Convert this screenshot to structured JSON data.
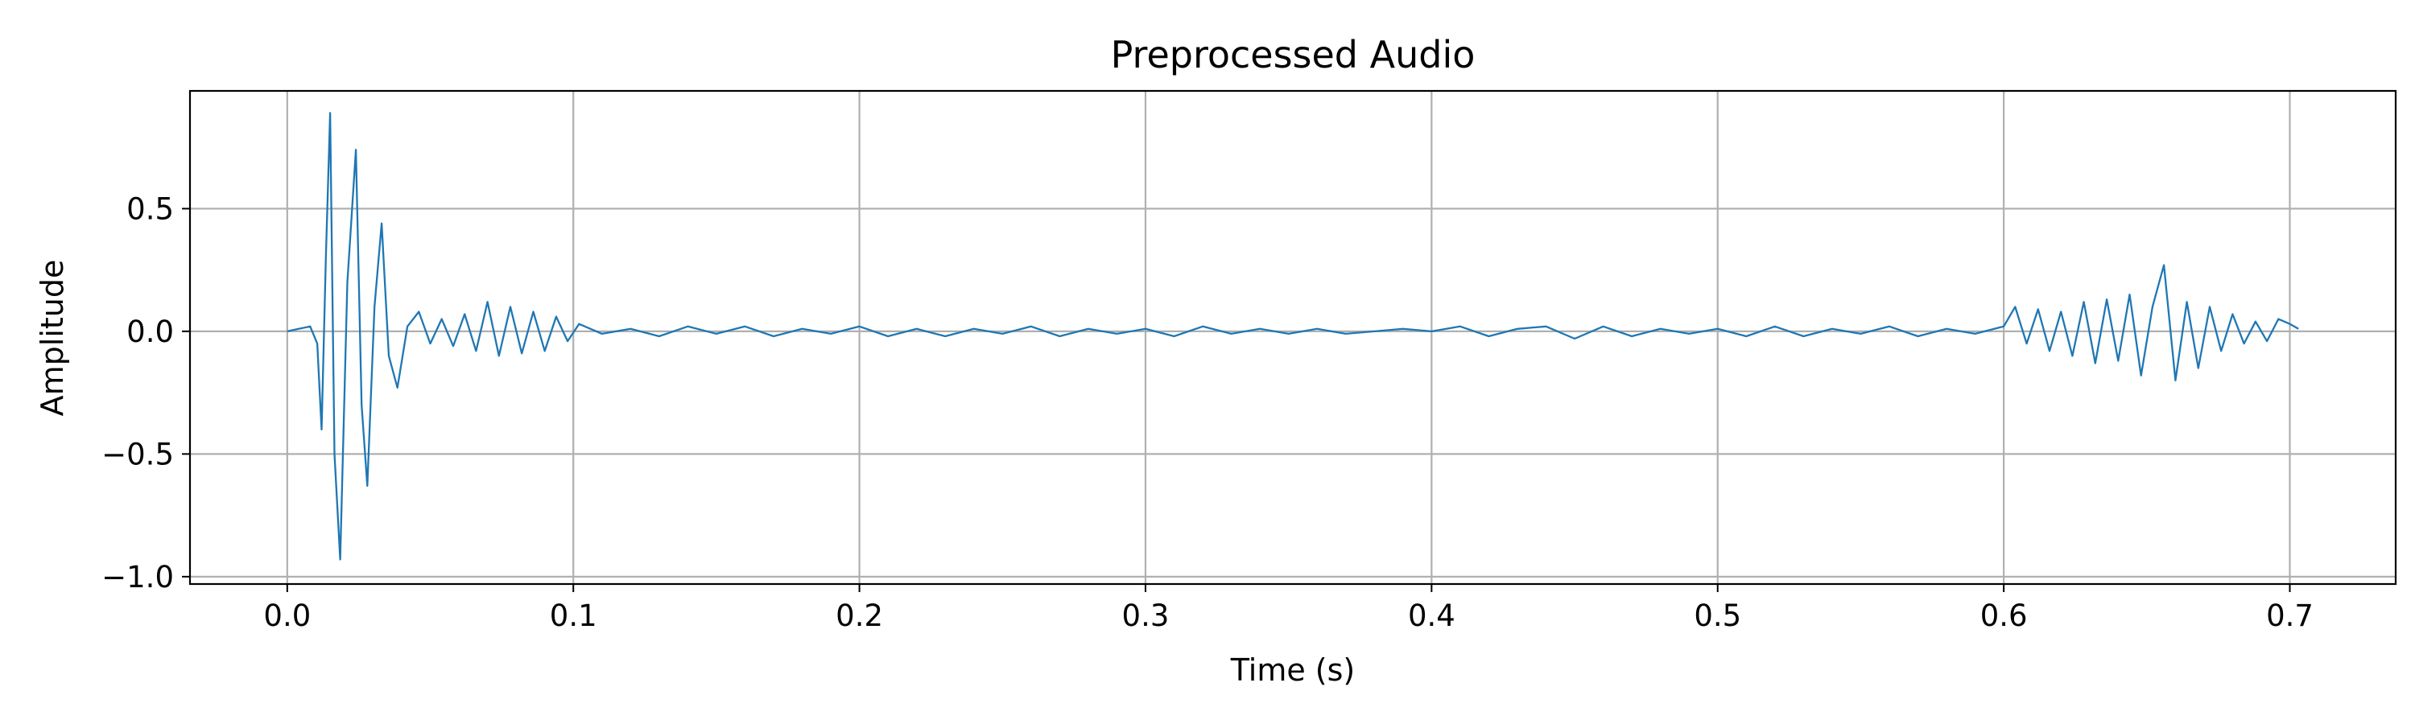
{
  "chart_data": {
    "type": "line",
    "title": "Preprocessed Audio",
    "xlabel": "Time (s)",
    "ylabel": "Amplitude",
    "xlim": [
      -0.034,
      0.737
    ],
    "ylim": [
      -1.03,
      0.98
    ],
    "xticks": [
      0.0,
      0.1,
      0.2,
      0.3,
      0.4,
      0.5,
      0.6,
      0.7
    ],
    "xtick_labels": [
      "0.0",
      "0.1",
      "0.2",
      "0.3",
      "0.4",
      "0.5",
      "0.6",
      "0.7"
    ],
    "yticks": [
      -1.0,
      -0.5,
      0.0,
      0.5
    ],
    "ytick_labels": [
      "−1.0",
      "−0.5",
      "0.0",
      "0.5"
    ],
    "grid": true,
    "colors": {
      "line": "#1f77b4",
      "grid": "#b0b0b0"
    },
    "series": [
      {
        "x": [
          0.0,
          0.004,
          0.008,
          0.0105,
          0.012,
          0.0135,
          0.015,
          0.0165,
          0.0185,
          0.021,
          0.024,
          0.026,
          0.028,
          0.0305,
          0.033,
          0.0355,
          0.0385,
          0.042,
          0.046,
          0.05,
          0.054,
          0.058,
          0.062,
          0.066,
          0.07,
          0.074,
          0.078,
          0.082,
          0.086,
          0.09,
          0.094,
          0.098,
          0.102,
          0.11,
          0.12,
          0.13,
          0.14,
          0.15,
          0.16,
          0.17,
          0.18,
          0.19,
          0.2,
          0.21,
          0.22,
          0.23,
          0.24,
          0.25,
          0.26,
          0.27,
          0.28,
          0.29,
          0.3,
          0.31,
          0.32,
          0.33,
          0.34,
          0.35,
          0.36,
          0.37,
          0.38,
          0.39,
          0.4,
          0.41,
          0.42,
          0.43,
          0.44,
          0.45,
          0.46,
          0.47,
          0.48,
          0.49,
          0.5,
          0.51,
          0.52,
          0.53,
          0.54,
          0.55,
          0.56,
          0.57,
          0.58,
          0.59,
          0.6,
          0.604,
          0.608,
          0.612,
          0.616,
          0.62,
          0.624,
          0.628,
          0.632,
          0.636,
          0.64,
          0.644,
          0.648,
          0.652,
          0.656,
          0.66,
          0.664,
          0.668,
          0.672,
          0.676,
          0.68,
          0.684,
          0.688,
          0.692,
          0.696,
          0.7,
          0.703
        ],
        "y": [
          0.0,
          0.01,
          0.02,
          -0.05,
          -0.4,
          0.3,
          0.89,
          -0.5,
          -0.93,
          0.2,
          0.74,
          -0.3,
          -0.63,
          0.1,
          0.44,
          -0.1,
          -0.23,
          0.02,
          0.08,
          -0.05,
          0.05,
          -0.06,
          0.07,
          -0.08,
          0.12,
          -0.1,
          0.1,
          -0.09,
          0.08,
          -0.08,
          0.06,
          -0.04,
          0.03,
          -0.01,
          0.01,
          -0.02,
          0.02,
          -0.01,
          0.02,
          -0.02,
          0.01,
          -0.01,
          0.02,
          -0.02,
          0.01,
          -0.02,
          0.01,
          -0.01,
          0.02,
          -0.02,
          0.01,
          -0.01,
          0.01,
          -0.02,
          0.02,
          -0.01,
          0.01,
          -0.01,
          0.01,
          -0.01,
          0.0,
          0.01,
          0.0,
          0.02,
          -0.02,
          0.01,
          0.02,
          -0.03,
          0.02,
          -0.02,
          0.01,
          -0.01,
          0.01,
          -0.02,
          0.02,
          -0.02,
          0.01,
          -0.01,
          0.02,
          -0.02,
          0.01,
          -0.01,
          0.02,
          0.1,
          -0.05,
          0.09,
          -0.08,
          0.08,
          -0.1,
          0.12,
          -0.13,
          0.13,
          -0.12,
          0.15,
          -0.18,
          0.1,
          0.27,
          -0.2,
          0.12,
          -0.15,
          0.1,
          -0.08,
          0.07,
          -0.05,
          0.04,
          -0.04,
          0.05,
          0.03,
          0.01
        ]
      }
    ]
  }
}
